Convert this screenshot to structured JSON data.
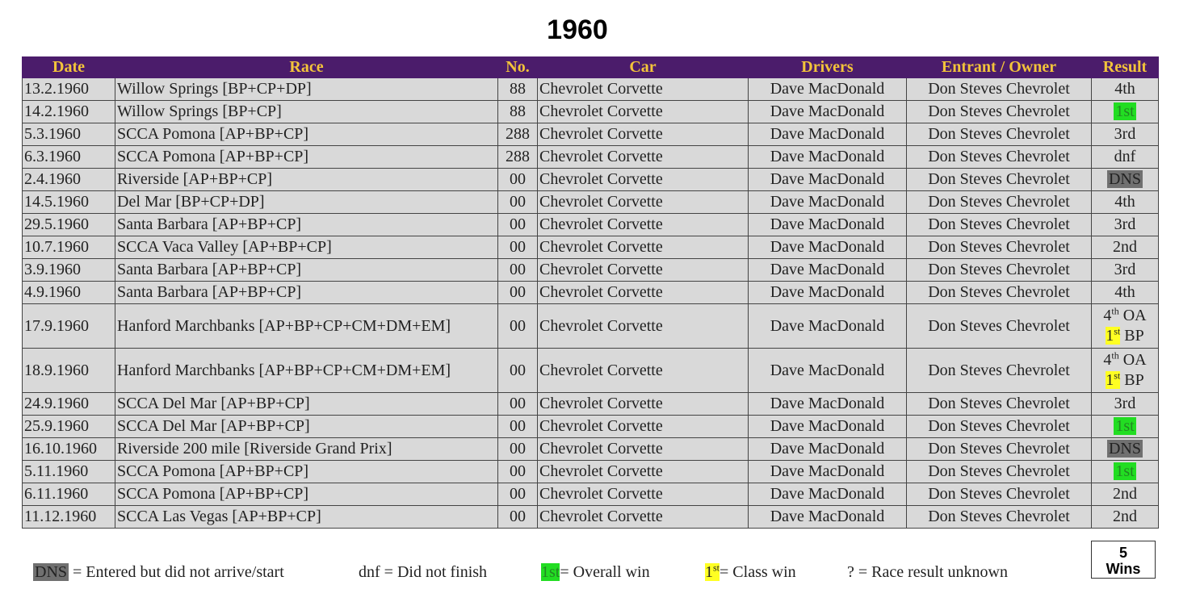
{
  "title": "1960",
  "columns": [
    "Date",
    "Race",
    "No.",
    "Car",
    "Drivers",
    "Entrant / Owner",
    "Result"
  ],
  "rows": [
    {
      "date": "13.2.1960",
      "race": "Willow Springs [BP+CP+DP]",
      "no": "88",
      "car": "Chevrolet Corvette",
      "driver": "Dave MacDonald",
      "entrant": "Don Steves Chevrolet",
      "result": "4th"
    },
    {
      "date": "14.2.1960",
      "race": "Willow Springs [BP+CP]",
      "no": "88",
      "car": "Chevrolet Corvette",
      "driver": "Dave MacDonald",
      "entrant": "Don Steves Chevrolet",
      "result": "1st",
      "highlight": "green"
    },
    {
      "date": "5.3.1960",
      "race": "SCCA Pomona [AP+BP+CP]",
      "no": "288",
      "car": "Chevrolet Corvette",
      "driver": "Dave MacDonald",
      "entrant": "Don Steves Chevrolet",
      "result": "3rd"
    },
    {
      "date": "6.3.1960",
      "race": "SCCA Pomona [AP+BP+CP]",
      "no": "288",
      "car": "Chevrolet Corvette",
      "driver": "Dave MacDonald",
      "entrant": "Don Steves Chevrolet",
      "result": "dnf"
    },
    {
      "date": "2.4.1960",
      "race": "Riverside [AP+BP+CP]",
      "no": "00",
      "car": "Chevrolet Corvette",
      "driver": "Dave MacDonald",
      "entrant": "Don Steves Chevrolet",
      "result": "DNS",
      "highlight": "grey"
    },
    {
      "date": "14.5.1960",
      "race": "Del Mar [BP+CP+DP]",
      "no": "00",
      "car": "Chevrolet Corvette",
      "driver": "Dave MacDonald",
      "entrant": "Don Steves Chevrolet",
      "result": "4th"
    },
    {
      "date": "29.5.1960",
      "race": "Santa Barbara [AP+BP+CP]",
      "no": "00",
      "car": "Chevrolet Corvette",
      "driver": "Dave MacDonald",
      "entrant": "Don Steves Chevrolet",
      "result": "3rd"
    },
    {
      "date": "10.7.1960",
      "race": "SCCA Vaca Valley [AP+BP+CP]",
      "no": "00",
      "car": "Chevrolet Corvette",
      "driver": "Dave MacDonald",
      "entrant": "Don Steves Chevrolet",
      "result": "2nd"
    },
    {
      "date": "3.9.1960",
      "race": "Santa Barbara [AP+BP+CP]",
      "no": "00",
      "car": "Chevrolet Corvette",
      "driver": "Dave MacDonald",
      "entrant": "Don Steves Chevrolet",
      "result": "3rd"
    },
    {
      "date": "4.9.1960",
      "race": "Santa Barbara [AP+BP+CP]",
      "no": "00",
      "car": "Chevrolet Corvette",
      "driver": "Dave MacDonald",
      "entrant": "Don Steves Chevrolet",
      "result": "4th"
    },
    {
      "date": "17.9.1960",
      "race": "Hanford Marchbanks [AP+BP+CP+CM+DM+EM]",
      "no": "00",
      "car": "Chevrolet Corvette",
      "driver": "Dave MacDonald",
      "entrant": "Don Steves Chevrolet",
      "result_lines": [
        {
          "num": "4",
          "sup": "th",
          "rest": " OA"
        },
        {
          "num": "1",
          "sup": "st",
          "rest": " BP",
          "highlight": "yellow"
        }
      ]
    },
    {
      "date": "18.9.1960",
      "race": "Hanford Marchbanks [AP+BP+CP+CM+DM+EM]",
      "no": "00",
      "car": "Chevrolet Corvette",
      "driver": "Dave MacDonald",
      "entrant": "Don Steves Chevrolet",
      "result_lines": [
        {
          "num": "4",
          "sup": "th",
          "rest": " OA"
        },
        {
          "num": "1",
          "sup": "st",
          "rest": " BP",
          "highlight": "yellow"
        }
      ]
    },
    {
      "date": "24.9.1960",
      "race": "SCCA Del Mar [AP+BP+CP]",
      "no": "00",
      "car": "Chevrolet Corvette",
      "driver": "Dave MacDonald",
      "entrant": "Don Steves Chevrolet",
      "result": "3rd"
    },
    {
      "date": "25.9.1960",
      "race": "SCCA Del Mar [AP+BP+CP]",
      "no": "00",
      "car": "Chevrolet Corvette",
      "driver": "Dave MacDonald",
      "entrant": "Don Steves Chevrolet",
      "result": "1st",
      "highlight": "green"
    },
    {
      "date": "16.10.1960",
      "race": "Riverside 200 mile [Riverside Grand Prix]",
      "no": "00",
      "car": "Chevrolet Corvette",
      "driver": "Dave MacDonald",
      "entrant": "Don Steves Chevrolet",
      "result": "DNS",
      "highlight": "grey"
    },
    {
      "date": "5.11.1960",
      "race": "SCCA Pomona [AP+BP+CP]",
      "no": "00",
      "car": "Chevrolet Corvette",
      "driver": "Dave MacDonald",
      "entrant": "Don Steves Chevrolet",
      "result": "1st",
      "highlight": "green"
    },
    {
      "date": "6.11.1960",
      "race": "SCCA Pomona [AP+BP+CP]",
      "no": "00",
      "car": "Chevrolet Corvette",
      "driver": "Dave MacDonald",
      "entrant": "Don Steves Chevrolet",
      "result": "2nd"
    },
    {
      "date": "11.12.1960",
      "race": "SCCA Las Vegas [AP+BP+CP]",
      "no": "00",
      "car": "Chevrolet Corvette",
      "driver": "Dave MacDonald",
      "entrant": "Don Steves Chevrolet",
      "result": "2nd"
    }
  ],
  "legend": {
    "dns_key": "DNS",
    "dns_text": " = Entered but did not arrive/start",
    "dnf_text": "dnf = Did not finish",
    "overall_key": "1st",
    "overall_text": "= Overall win",
    "class_key_num": "1",
    "class_key_sup": "st",
    "class_text": "= Class win",
    "unknown_text": "? = Race result unknown"
  },
  "wins": {
    "count": "5",
    "label": "Wins"
  },
  "colors": {
    "header_bg": "#4b1c6b",
    "header_text": "#f3c43a",
    "row_bg": "#d9d9d9",
    "overall_win": "#22dd22",
    "class_win": "#ffff22",
    "dns": "#707070"
  }
}
